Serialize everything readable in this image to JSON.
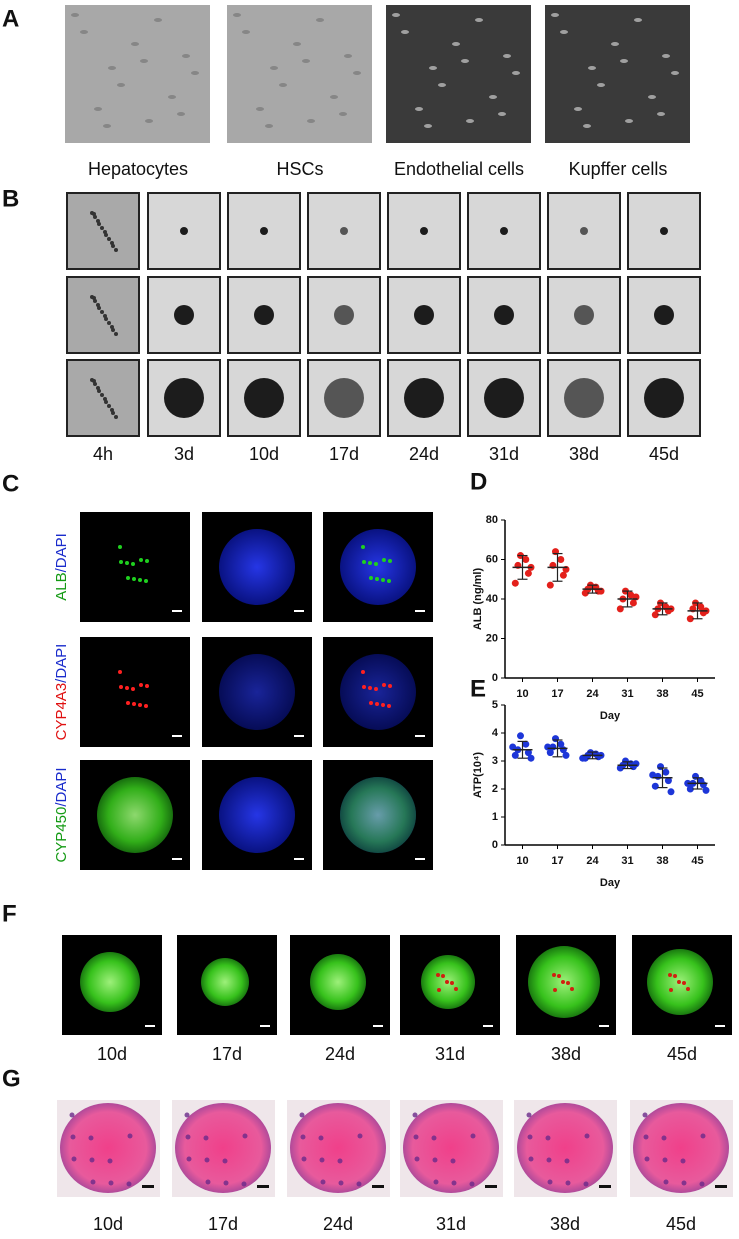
{
  "panel_labels": [
    "A",
    "B",
    "C",
    "D",
    "E",
    "F",
    "G"
  ],
  "cell_types": [
    "Hepatocytes",
    "HSCs",
    "Endothelial cells",
    "Kupffer cells"
  ],
  "time_points_b": [
    "4h",
    "3d",
    "10d",
    "17d",
    "24d",
    "31d",
    "38d",
    "45d"
  ],
  "stains": [
    {
      "marker": "ALB",
      "counterstain": "/DAPI"
    },
    {
      "marker": "CYP4A3",
      "counterstain": "/DAPI"
    },
    {
      "marker": "CYP450",
      "counterstain": "/DAPI"
    }
  ],
  "time_points_f": [
    "10d",
    "17d",
    "24d",
    "31d",
    "38d",
    "45d"
  ],
  "time_points_g": [
    "10d",
    "17d",
    "24d",
    "31d",
    "38d",
    "45d"
  ],
  "chart_data": [
    {
      "type": "scatter",
      "ylabel": "ALB (ng/ml)",
      "xlabel": "Day",
      "categories": [
        10,
        17,
        24,
        31,
        38,
        45
      ],
      "ylim": [
        0,
        80
      ],
      "yticks": [
        0,
        20,
        40,
        60,
        80
      ],
      "color": "#e3201b",
      "points": [
        [
          62,
          60,
          57,
          53,
          48,
          56
        ],
        [
          64,
          60,
          57,
          52,
          47,
          55
        ],
        [
          47,
          46,
          45,
          44,
          43,
          44
        ],
        [
          44,
          42,
          40,
          38,
          35,
          41
        ],
        [
          38,
          36,
          35,
          34,
          32,
          35
        ],
        [
          38,
          36,
          35,
          33,
          30,
          34
        ]
      ],
      "means": [
        56,
        56,
        45,
        40,
        35,
        34
      ],
      "sd": [
        6,
        7,
        2,
        4,
        3,
        4
      ]
    },
    {
      "type": "scatter",
      "ylabel": "ATP(10⁴)",
      "xlabel": "Day",
      "categories": [
        10,
        17,
        24,
        31,
        38,
        45
      ],
      "ylim": [
        0,
        5
      ],
      "yticks": [
        0,
        1,
        2,
        3,
        4,
        5
      ],
      "color": "#1d36d8",
      "points": [
        [
          3.9,
          3.6,
          3.4,
          3.3,
          3.2,
          3.1,
          3.5
        ],
        [
          3.8,
          3.6,
          3.5,
          3.4,
          3.3,
          3.2,
          3.5
        ],
        [
          3.3,
          3.25,
          3.2,
          3.15,
          3.1,
          3.2,
          3.1
        ],
        [
          3.0,
          2.9,
          2.85,
          2.8,
          2.75,
          2.9
        ],
        [
          2.8,
          2.6,
          2.45,
          2.3,
          2.1,
          1.9,
          2.5
        ],
        [
          2.45,
          2.3,
          2.2,
          2.15,
          2.0,
          1.95,
          2.2
        ]
      ],
      "means": [
        3.4,
        3.45,
        3.2,
        2.85,
        2.4,
        2.2
      ],
      "sd": [
        0.3,
        0.3,
        0.12,
        0.12,
        0.35,
        0.2
      ]
    }
  ]
}
